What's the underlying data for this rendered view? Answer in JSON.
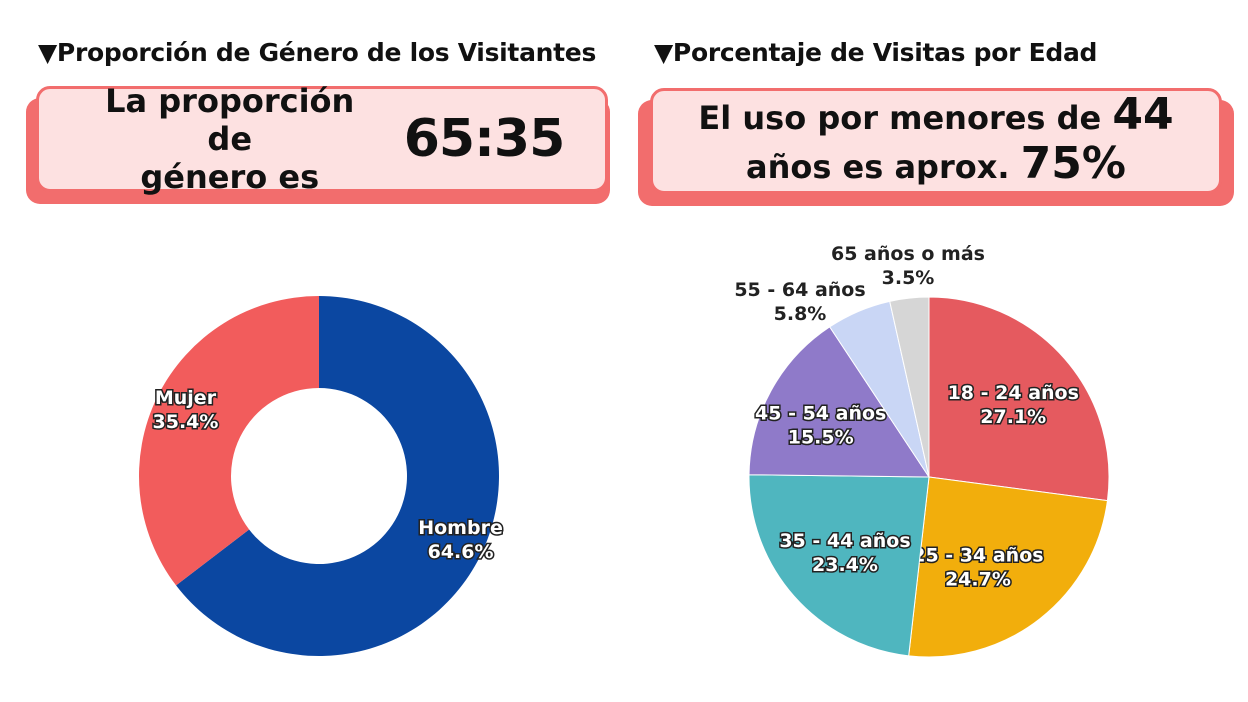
{
  "left": {
    "title": "▼Proporción de Género de los Visitantes",
    "callout_text_line1": "La proporción de",
    "callout_text_line2": "género es",
    "callout_big": "65:35"
  },
  "right": {
    "title": "▼Porcentaje de Visitas por Edad",
    "callout_line1_text": "El uso por menores de",
    "callout_line1_num": "44",
    "callout_line2_text": "años es aprox.",
    "callout_line2_num": "75%"
  },
  "chart_data": [
    {
      "type": "pie",
      "donut": true,
      "categories": [
        "Hombre",
        "Mujer"
      ],
      "values": [
        64.6,
        35.4
      ],
      "value_labels": [
        "64.6%",
        "35.4%"
      ],
      "colors": [
        "#0b47a1",
        "#f25c5c"
      ]
    },
    {
      "type": "pie",
      "donut": false,
      "categories": [
        "18 - 24 años",
        "25 - 34 años",
        "35 - 44 años",
        "45 - 54 años",
        "55 - 64 años",
        "65 años o más"
      ],
      "values": [
        27.1,
        24.7,
        23.4,
        15.5,
        5.8,
        3.5
      ],
      "value_labels": [
        "27.1%",
        "24.7%",
        "23.4%",
        "15.5%",
        "5.8%",
        "3.5%"
      ],
      "colors": [
        "#e55a5f",
        "#f2ae0c",
        "#4fb6bf",
        "#8f7ac9",
        "#c9d6f5",
        "#d6d6d6"
      ]
    }
  ]
}
